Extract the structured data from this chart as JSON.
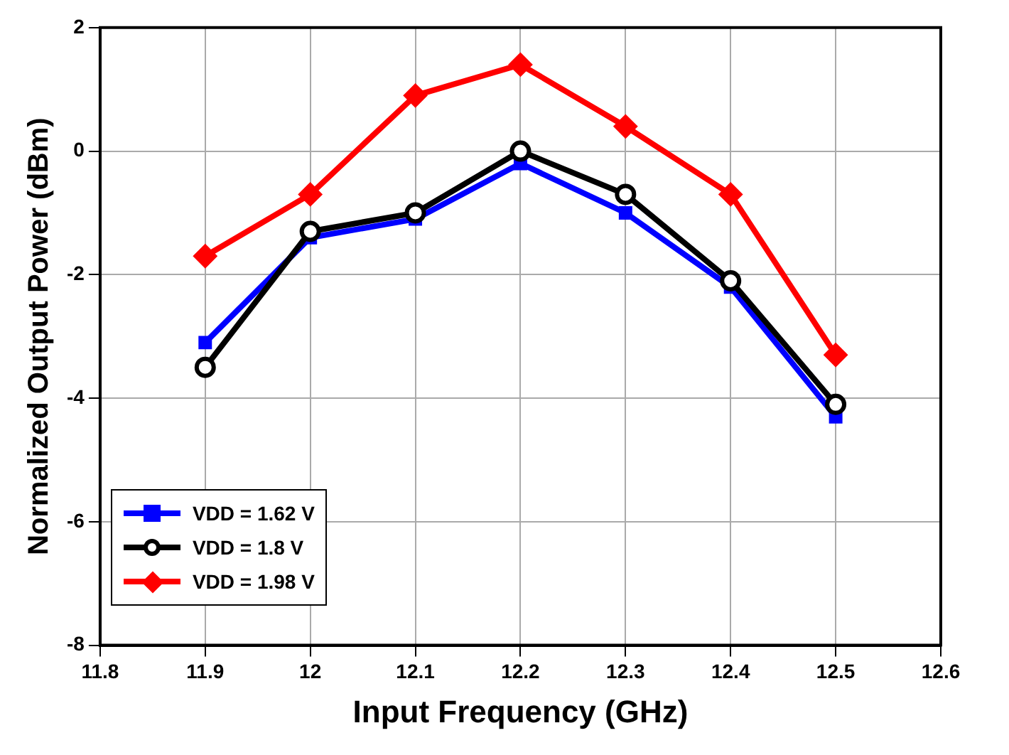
{
  "chart_data": {
    "type": "line",
    "xlabel": "Input Frequency (GHz)",
    "ylabel": "Normalized Output Power (dBm)",
    "x": [
      11.9,
      12.0,
      12.1,
      12.2,
      12.3,
      12.4,
      12.5
    ],
    "series": [
      {
        "name": "VDD = 1.62 V",
        "color": "#0000ff",
        "marker": "square",
        "values": [
          -3.1,
          -1.4,
          -1.1,
          -0.2,
          -1.0,
          -2.2,
          -4.3
        ]
      },
      {
        "name": "VDD = 1.8 V",
        "color": "#000000",
        "marker": "circle",
        "values": [
          -3.5,
          -1.3,
          -1.0,
          0.0,
          -0.7,
          -2.1,
          -4.1
        ]
      },
      {
        "name": "VDD = 1.98 V",
        "color": "#ff0000",
        "marker": "diamond",
        "values": [
          -1.7,
          -0.7,
          0.9,
          1.4,
          0.4,
          -0.7,
          -3.3
        ]
      }
    ],
    "xlim": [
      11.8,
      12.6
    ],
    "xticks": [
      11.8,
      11.9,
      12,
      12.1,
      12.2,
      12.3,
      12.4,
      12.5,
      12.6
    ],
    "ylim": [
      -8,
      2
    ],
    "yticks": [
      -8,
      -6,
      -4,
      -2,
      0,
      2
    ],
    "grid": true,
    "legend": "bottom left",
    "line_style": "solid"
  }
}
